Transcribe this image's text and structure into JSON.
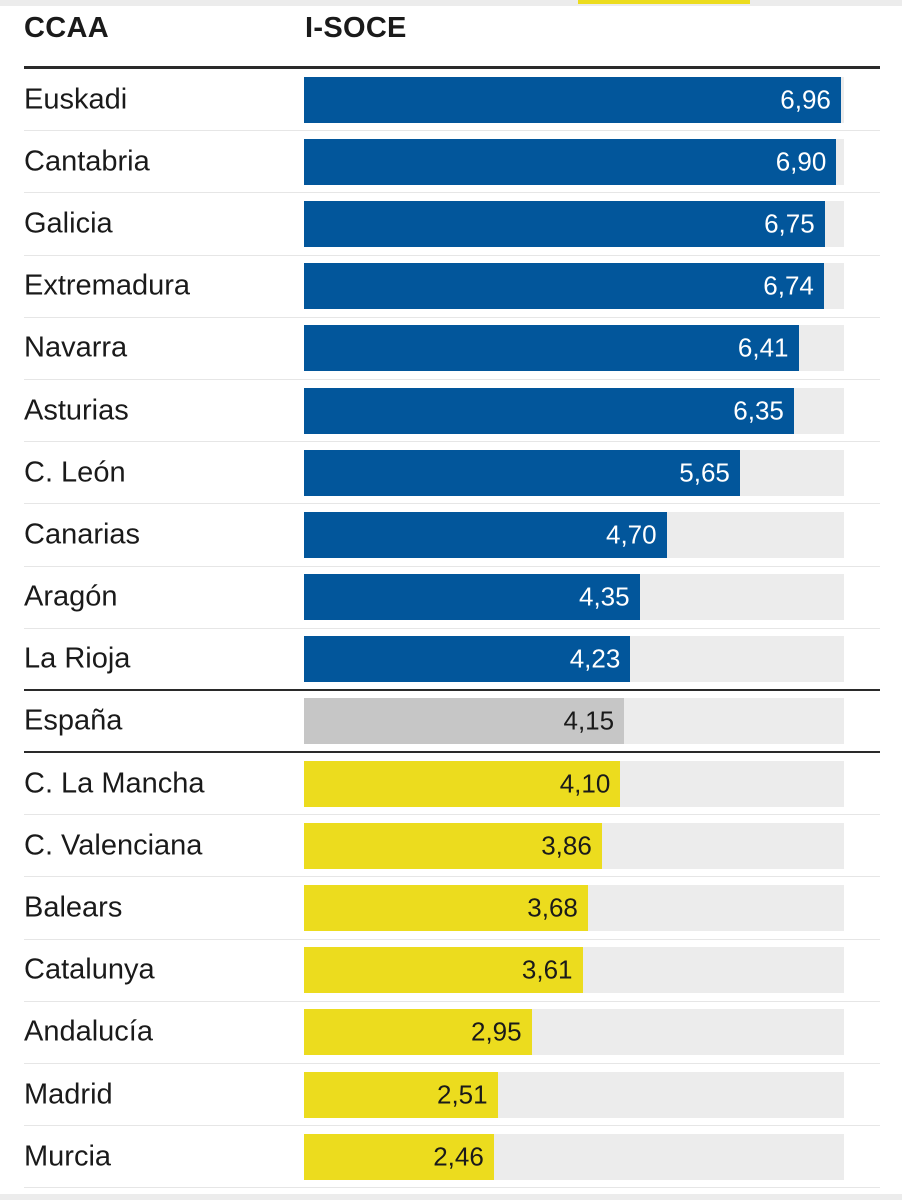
{
  "colors": {
    "above_average": "#02569b",
    "national": "#c6c6c6",
    "below_average": "#ecdc1e",
    "track": "#ececec",
    "accent_strip": "#ecdc1e"
  },
  "chart_data": {
    "type": "bar",
    "orientation": "horizontal",
    "columns": [
      "CCAA",
      "I-SOCE"
    ],
    "xlim": [
      0,
      7
    ],
    "grid": false,
    "categories": [
      "Euskadi",
      "Cantabria",
      "Galicia",
      "Extremadura",
      "Navarra",
      "Asturias",
      "C. León",
      "Canarias",
      "Aragón",
      "La Rioja",
      "España",
      "C. La Mancha",
      "C. Valenciana",
      "Balears",
      "Catalunya",
      "Andalucía",
      "Madrid",
      "Murcia"
    ],
    "values": [
      6.96,
      6.9,
      6.75,
      6.74,
      6.41,
      6.35,
      5.65,
      4.7,
      4.35,
      4.23,
      4.15,
      4.1,
      3.86,
      3.68,
      3.61,
      2.95,
      2.51,
      2.46
    ],
    "value_labels": [
      "6,96",
      "6,90",
      "6,75",
      "6,74",
      "6,41",
      "6,35",
      "5,65",
      "4,70",
      "4,35",
      "4,23",
      "4,15",
      "4,10",
      "3,86",
      "3,68",
      "3,61",
      "2,95",
      "2,51",
      "2,46"
    ],
    "groups": [
      "above_average",
      "above_average",
      "above_average",
      "above_average",
      "above_average",
      "above_average",
      "above_average",
      "above_average",
      "above_average",
      "above_average",
      "national",
      "below_average",
      "below_average",
      "below_average",
      "below_average",
      "below_average",
      "below_average",
      "below_average"
    ]
  }
}
